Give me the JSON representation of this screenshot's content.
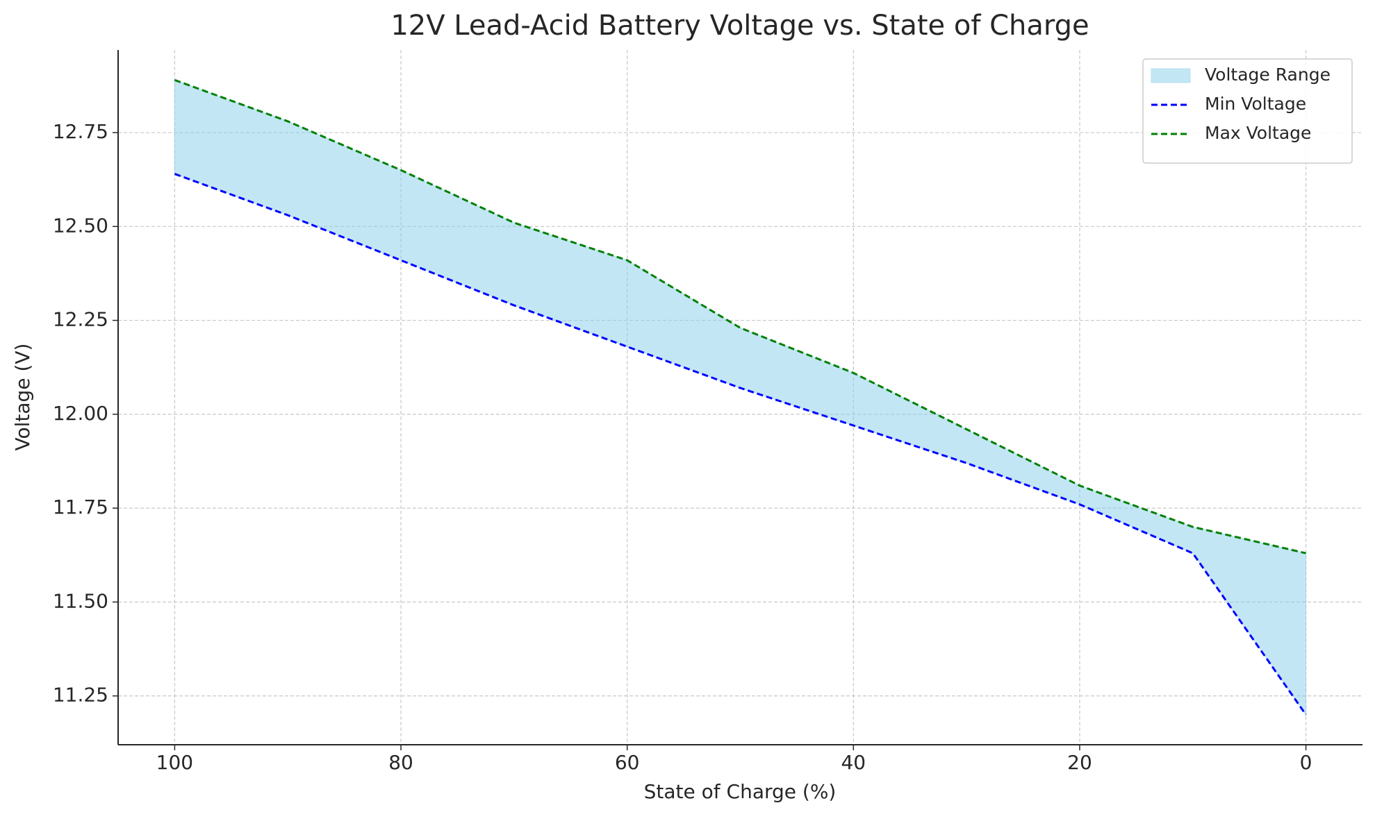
{
  "chart_data": {
    "type": "line",
    "title": "12V Lead-Acid Battery Voltage vs. State of Charge",
    "x_label": "State of Charge (%)",
    "y_label": "Voltage (V)",
    "x": [
      100,
      90,
      80,
      70,
      60,
      50,
      40,
      30,
      20,
      10,
      0
    ],
    "area": {
      "name": "Voltage Range",
      "color": "#87ceeb",
      "between": [
        0,
        1
      ]
    },
    "series": [
      {
        "name": "Min Voltage",
        "color": "#0000ff",
        "linestyle": "dashed",
        "values": [
          12.64,
          12.53,
          12.41,
          12.29,
          12.18,
          12.07,
          11.97,
          11.87,
          11.76,
          11.63,
          11.2
        ]
      },
      {
        "name": "Max Voltage",
        "color": "#008000",
        "linestyle": "dashed",
        "values": [
          12.89,
          12.78,
          12.65,
          12.51,
          12.41,
          12.23,
          12.11,
          11.96,
          11.81,
          11.7,
          11.63
        ]
      }
    ],
    "xlim": [
      105,
      -5
    ],
    "xticks": [
      100,
      80,
      60,
      40,
      20,
      0
    ],
    "ylim": [
      11.12,
      12.97
    ],
    "yticks": [
      11.25,
      {
        "value": 11.5,
        "label": "11.50"
      },
      11.75,
      {
        "value": 12,
        "label": "12.00"
      },
      12.25,
      {
        "value": 12.5,
        "label": "12.50"
      },
      12.75
    ],
    "grid": true,
    "legend": "upper right"
  }
}
